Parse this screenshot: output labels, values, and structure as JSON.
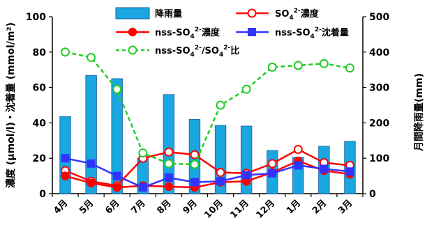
{
  "chart_data": {
    "type": "bar+line",
    "categories": [
      "4月",
      "5月",
      "6月",
      "7月",
      "8月",
      "9月",
      "10月",
      "11月",
      "12月",
      "1月",
      "2月",
      "3月"
    ],
    "ylabel_left": "濃度 (μmol/l)・沈着量 (mmol/m²)",
    "ylabel_right": "月間降雨量(mm)",
    "ylim_left": [
      0,
      100
    ],
    "ylim_right": [
      0,
      500
    ],
    "yticks_left": [
      "0",
      "20",
      "40",
      "60",
      "80",
      "100"
    ],
    "yticks_right": [
      "0",
      "100",
      "200",
      "300",
      "400",
      "500"
    ],
    "legend_position": "top",
    "series": [
      {
        "name": "降雨量",
        "kind": "bar",
        "axis": "right",
        "color": "#1aa7e0",
        "values": [
          218,
          334,
          325,
          100,
          280,
          210,
          193,
          191,
          122,
          103,
          134,
          148
        ]
      },
      {
        "name": "SO₄²⁻濃度",
        "kind": "line",
        "axis": "left",
        "color": "#ff0000",
        "marker": "open-circle",
        "values": [
          13,
          7,
          4.5,
          20,
          23.5,
          22,
          12,
          11.5,
          17,
          25,
          17.5,
          16
        ]
      },
      {
        "name": "nss-SO₄²⁻濃度",
        "kind": "line",
        "axis": "left",
        "color": "#ff0000",
        "marker": "filled-circle",
        "values": [
          10,
          6,
          3.5,
          4.5,
          4,
          3.5,
          6.5,
          7,
          12,
          18.5,
          13,
          11
        ]
      },
      {
        "name": "nss-SO₄²⁻沈着量",
        "kind": "line",
        "axis": "left",
        "color": "#3333ff",
        "marker": "square",
        "values": [
          20,
          17,
          10,
          3.5,
          9,
          6.5,
          7,
          10.5,
          11.5,
          16,
          14,
          12.5
        ]
      },
      {
        "name": "nss-SO₄²⁻/SO₄²⁻比",
        "kind": "line",
        "axis": "left",
        "color": "#22cc22",
        "marker": "open-circle-dashed",
        "values": [
          80,
          77,
          59,
          23,
          17,
          16.5,
          50,
          59,
          71.5,
          72.5,
          73.5,
          71
        ]
      }
    ]
  },
  "legend": {
    "rain": "降雨量",
    "so4": "SO",
    "so4_suffix": "濃度",
    "nss_conc_prefix": "nss-SO",
    "nss_conc_suffix": "濃度",
    "nss_dep_prefix": "nss-SO",
    "nss_dep_suffix": "沈着量",
    "ratio_prefix": "nss-SO",
    "ratio_mid": "/SO",
    "ratio_suffix": "比",
    "sub": "4",
    "sup": "2-"
  }
}
